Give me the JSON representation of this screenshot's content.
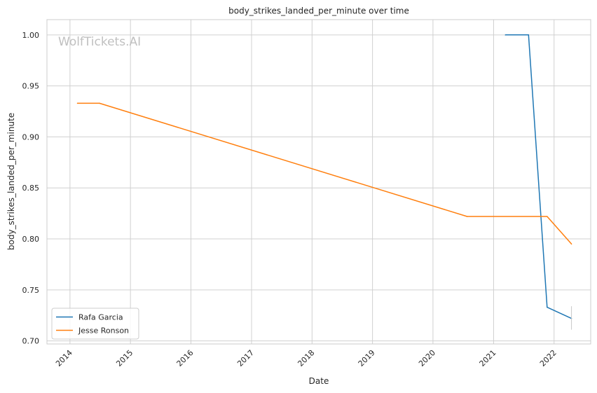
{
  "chart_data": {
    "type": "line",
    "title": "body_strikes_landed_per_minute over time",
    "xlabel": "Date",
    "ylabel": "body_strikes_landed_per_minute",
    "watermark": "WolfTickets.AI",
    "x_ticks": [
      "2014",
      "2015",
      "2016",
      "2017",
      "2018",
      "2019",
      "2020",
      "2021",
      "2022"
    ],
    "y_ticks": [
      "0.70",
      "0.75",
      "0.80",
      "0.85",
      "0.90",
      "0.95",
      "1.00"
    ],
    "xlim": [
      "2013-08-15",
      "2022-08-10"
    ],
    "ylim": [
      0.697,
      1.015
    ],
    "grid": true,
    "legend_position": "lower-left",
    "series": [
      {
        "name": "Rafa Garcia",
        "color": "#1f77b4",
        "points": [
          {
            "x": "2021-03-13",
            "y": 1.0
          },
          {
            "x": "2021-07-31",
            "y": 1.0
          },
          {
            "x": "2021-11-20",
            "y": 0.733
          },
          {
            "x": "2022-04-16",
            "y": 0.722
          }
        ]
      },
      {
        "name": "Jesse Ronson",
        "color": "#ff7f0e",
        "points": [
          {
            "x": "2014-02-15",
            "y": 0.933
          },
          {
            "x": "2014-06-28",
            "y": 0.933
          },
          {
            "x": "2020-07-25",
            "y": 0.822
          },
          {
            "x": "2021-11-20",
            "y": 0.822
          },
          {
            "x": "2022-04-16",
            "y": 0.795
          }
        ]
      }
    ],
    "error_bar": {
      "x": "2022-04-16",
      "y_low": 0.711,
      "y_high": 0.734
    }
  }
}
